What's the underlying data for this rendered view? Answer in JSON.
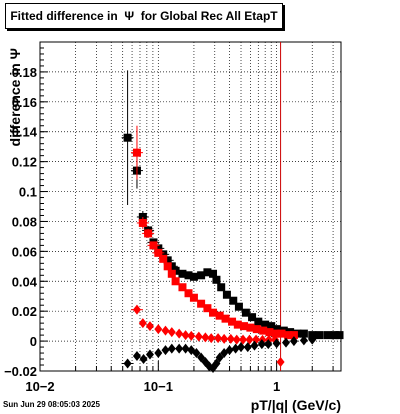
{
  "chart_data": {
    "type": "scatter",
    "title": "Fitted difference in  Ψ  for Global Rec All EtapT",
    "xlabel": "pT/|q| (GeV/c)",
    "ylabel": "difference in  Ψ",
    "x_scale": "log",
    "xlim": [
      0.01,
      3.5
    ],
    "ylim": [
      -0.02,
      0.2
    ],
    "grid": true,
    "x_tick_labels": [
      "10−2",
      "10−1",
      "1"
    ],
    "y_ticks": [
      -0.02,
      0,
      0.02,
      0.04,
      0.06,
      0.08,
      0.1,
      0.12,
      0.14,
      0.16,
      0.18
    ],
    "y_tick_labels": [
      "−0.02",
      "0",
      "0.02",
      "0.04",
      "0.06",
      "0.08",
      "0.1",
      "0.12",
      "0.14",
      "0.16",
      "0.18"
    ],
    "vertical_line_x": 1.08,
    "series": [
      {
        "marker": "square",
        "color": "#000000",
        "points": [
          {
            "x": 0.055,
            "y": 0.136,
            "err": 0.045
          },
          {
            "x": 0.066,
            "y": 0.114,
            "err": 0.012
          },
          {
            "x": 0.074,
            "y": 0.083,
            "err": 0.004
          },
          {
            "x": 0.082,
            "y": 0.074,
            "err": 0.003
          },
          {
            "x": 0.091,
            "y": 0.066,
            "err": 0.002
          },
          {
            "x": 0.1,
            "y": 0.062,
            "err": 0.002
          },
          {
            "x": 0.11,
            "y": 0.058,
            "err": 0.0015
          },
          {
            "x": 0.12,
            "y": 0.054,
            "err": 0.0015
          },
          {
            "x": 0.13,
            "y": 0.05,
            "err": 0.001
          },
          {
            "x": 0.14,
            "y": 0.047,
            "err": 0.001
          },
          {
            "x": 0.16,
            "y": 0.045
          },
          {
            "x": 0.18,
            "y": 0.044
          },
          {
            "x": 0.2,
            "y": 0.043
          },
          {
            "x": 0.23,
            "y": 0.044
          },
          {
            "x": 0.26,
            "y": 0.046
          },
          {
            "x": 0.29,
            "y": 0.045
          },
          {
            "x": 0.31,
            "y": 0.041
          },
          {
            "x": 0.34,
            "y": 0.036
          },
          {
            "x": 0.38,
            "y": 0.031
          },
          {
            "x": 0.43,
            "y": 0.027
          },
          {
            "x": 0.48,
            "y": 0.023
          },
          {
            "x": 0.55,
            "y": 0.019
          },
          {
            "x": 0.62,
            "y": 0.016
          },
          {
            "x": 0.7,
            "y": 0.013
          },
          {
            "x": 0.8,
            "y": 0.011
          },
          {
            "x": 0.9,
            "y": 0.01
          },
          {
            "x": 1.0,
            "y": 0.008
          },
          {
            "x": 1.15,
            "y": 0.007
          },
          {
            "x": 1.3,
            "y": 0.006
          },
          {
            "x": 1.5,
            "y": 0.005
          },
          {
            "x": 1.7,
            "y": 0.005
          },
          {
            "x": 2.0,
            "y": 0.004
          },
          {
            "x": 2.3,
            "y": 0.004
          },
          {
            "x": 2.7,
            "y": 0.004
          },
          {
            "x": 3.1,
            "y": 0.004
          },
          {
            "x": 3.4,
            "y": 0.004
          }
        ]
      },
      {
        "marker": "square",
        "color": "#ff0000",
        "points": [
          {
            "x": 0.066,
            "y": 0.126,
            "err": 0.018
          },
          {
            "x": 0.074,
            "y": 0.079,
            "err": 0.004
          },
          {
            "x": 0.082,
            "y": 0.072,
            "err": 0.003
          },
          {
            "x": 0.091,
            "y": 0.064,
            "err": 0.002
          },
          {
            "x": 0.1,
            "y": 0.059,
            "err": 0.002
          },
          {
            "x": 0.11,
            "y": 0.055
          },
          {
            "x": 0.12,
            "y": 0.05
          },
          {
            "x": 0.13,
            "y": 0.045
          },
          {
            "x": 0.14,
            "y": 0.04
          },
          {
            "x": 0.16,
            "y": 0.036
          },
          {
            "x": 0.18,
            "y": 0.032
          },
          {
            "x": 0.2,
            "y": 0.029
          },
          {
            "x": 0.23,
            "y": 0.025
          },
          {
            "x": 0.26,
            "y": 0.022
          },
          {
            "x": 0.29,
            "y": 0.019
          },
          {
            "x": 0.33,
            "y": 0.017
          },
          {
            "x": 0.37,
            "y": 0.015
          },
          {
            "x": 0.42,
            "y": 0.013
          },
          {
            "x": 0.47,
            "y": 0.011
          },
          {
            "x": 0.53,
            "y": 0.01
          },
          {
            "x": 0.6,
            "y": 0.009
          },
          {
            "x": 0.68,
            "y": 0.008
          },
          {
            "x": 0.77,
            "y": 0.007
          },
          {
            "x": 0.87,
            "y": 0.006
          },
          {
            "x": 0.98,
            "y": 0.005
          },
          {
            "x": 1.1,
            "y": 0.005
          },
          {
            "x": 1.25,
            "y": 0.004
          },
          {
            "x": 1.4,
            "y": 0.004
          }
        ]
      },
      {
        "marker": "diamond",
        "color": "#ff0000",
        "points": [
          {
            "x": 0.066,
            "y": 0.021,
            "err": 0.003
          },
          {
            "x": 0.074,
            "y": 0.012
          },
          {
            "x": 0.085,
            "y": 0.01
          },
          {
            "x": 0.1,
            "y": 0.008
          },
          {
            "x": 0.115,
            "y": 0.007
          },
          {
            "x": 0.13,
            "y": 0.006
          },
          {
            "x": 0.15,
            "y": 0.005
          },
          {
            "x": 0.17,
            "y": 0.004
          },
          {
            "x": 0.19,
            "y": 0.0035
          },
          {
            "x": 0.22,
            "y": 0.003
          },
          {
            "x": 0.25,
            "y": 0.0025
          },
          {
            "x": 0.28,
            "y": 0.002
          },
          {
            "x": 0.32,
            "y": 0.002
          },
          {
            "x": 0.36,
            "y": 0.0015
          },
          {
            "x": 0.41,
            "y": 0.0015
          },
          {
            "x": 0.46,
            "y": 0.001
          },
          {
            "x": 0.52,
            "y": 0.001
          },
          {
            "x": 0.59,
            "y": 0.001
          },
          {
            "x": 0.67,
            "y": 0.001
          },
          {
            "x": 0.76,
            "y": 0.0008
          },
          {
            "x": 0.86,
            "y": 0.0008
          },
          {
            "x": 0.97,
            "y": 0.0008
          },
          {
            "x": 1.08,
            "y": -0.014
          }
        ]
      },
      {
        "marker": "diamond",
        "color": "#000000",
        "points": [
          {
            "x": 0.055,
            "y": -0.015,
            "err": 0.003
          },
          {
            "x": 0.066,
            "y": -0.01
          },
          {
            "x": 0.075,
            "y": -0.012
          },
          {
            "x": 0.085,
            "y": -0.009
          },
          {
            "x": 0.1,
            "y": -0.008
          },
          {
            "x": 0.115,
            "y": -0.006
          },
          {
            "x": 0.13,
            "y": -0.005
          },
          {
            "x": 0.15,
            "y": -0.005
          },
          {
            "x": 0.17,
            "y": -0.005
          },
          {
            "x": 0.19,
            "y": -0.006
          },
          {
            "x": 0.21,
            "y": -0.008
          },
          {
            "x": 0.23,
            "y": -0.011
          },
          {
            "x": 0.25,
            "y": -0.014
          },
          {
            "x": 0.27,
            "y": -0.017
          },
          {
            "x": 0.29,
            "y": -0.018
          },
          {
            "x": 0.31,
            "y": -0.015
          },
          {
            "x": 0.33,
            "y": -0.011
          },
          {
            "x": 0.36,
            "y": -0.008
          },
          {
            "x": 0.4,
            "y": -0.006
          },
          {
            "x": 0.45,
            "y": -0.005
          },
          {
            "x": 0.5,
            "y": -0.004
          },
          {
            "x": 0.57,
            "y": -0.004
          },
          {
            "x": 0.65,
            "y": -0.003
          },
          {
            "x": 0.75,
            "y": -0.002
          },
          {
            "x": 0.85,
            "y": -0.002
          },
          {
            "x": 1.0,
            "y": -0.0015
          },
          {
            "x": 1.2,
            "y": -0.001
          },
          {
            "x": 1.4,
            "y": 0.0
          },
          {
            "x": 1.7,
            "y": 0.0005
          },
          {
            "x": 2.0,
            "y": 0.001
          }
        ]
      }
    ]
  },
  "footer": {
    "datestamp": "Sun Jun 29 08:05:03 2025"
  }
}
